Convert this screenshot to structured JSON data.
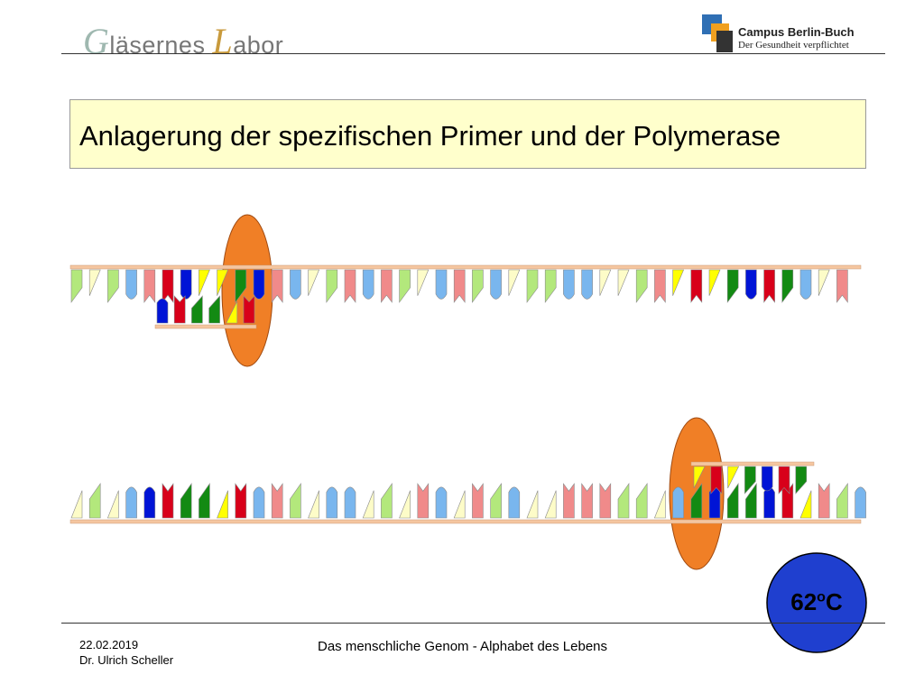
{
  "header": {
    "logo_left": {
      "first": "G",
      "mid": "läsernes ",
      "second": "L",
      "rest": "abor"
    },
    "logo_right": {
      "line1": "Campus Berlin-Buch",
      "line2": "Der Gesundheit verpflichtet"
    }
  },
  "slide": {
    "title": "Anlagerung der spezifischen Primer und der Polymerase"
  },
  "diagram": {
    "temperature": {
      "value": "62",
      "unit_sup": "o",
      "unit": "C"
    },
    "colors": {
      "strand": "#f5c6a0",
      "polymerase": "#f07f26",
      "thermo_circle": "#1f3fcf",
      "pale_green": "#b3e87c",
      "pale_yellow": "#fdfcc8",
      "pale_blue": "#79b6ee",
      "pale_red": "#f08a8a",
      "green": "#138a13",
      "yellow": "#ffff00",
      "blue": "#0014d6",
      "red": "#d8001a"
    },
    "top_template": [
      "g",
      "y",
      "g",
      "b",
      "r",
      "R",
      "B",
      "Y",
      "Y",
      "G",
      "B",
      "r",
      "b",
      "y",
      "g",
      "r",
      "b",
      "r",
      "g",
      "y",
      "b",
      "r",
      "g",
      "b",
      "y",
      "g",
      "g",
      "b",
      "b",
      "y",
      "y",
      "g",
      "r",
      "Y",
      "R",
      "Y",
      "G",
      "B",
      "R",
      "G",
      "b",
      "y",
      "r"
    ],
    "top_primer": [
      "B",
      "R",
      "G",
      "G",
      "Y",
      "R"
    ],
    "bottom_template": [
      "y",
      "g",
      "y",
      "b",
      "B",
      "R",
      "G",
      "G",
      "Y",
      "R",
      "b",
      "r",
      "g",
      "y",
      "b",
      "b",
      "y",
      "g",
      "y",
      "r",
      "b",
      "y",
      "r",
      "g",
      "b",
      "y",
      "y",
      "r",
      "r",
      "r",
      "g",
      "g",
      "y",
      "b",
      "G",
      "B",
      "G",
      "G",
      "B",
      "R",
      "Y",
      "r",
      "g",
      "b"
    ],
    "bottom_primer": [
      "Y",
      "R",
      "Y",
      "G",
      "B",
      "R",
      "G"
    ]
  },
  "footer": {
    "date": "22.02.2019",
    "author": "Dr. Ulrich Scheller",
    "title": "Das menschliche Genom - Alphabet des Lebens"
  }
}
